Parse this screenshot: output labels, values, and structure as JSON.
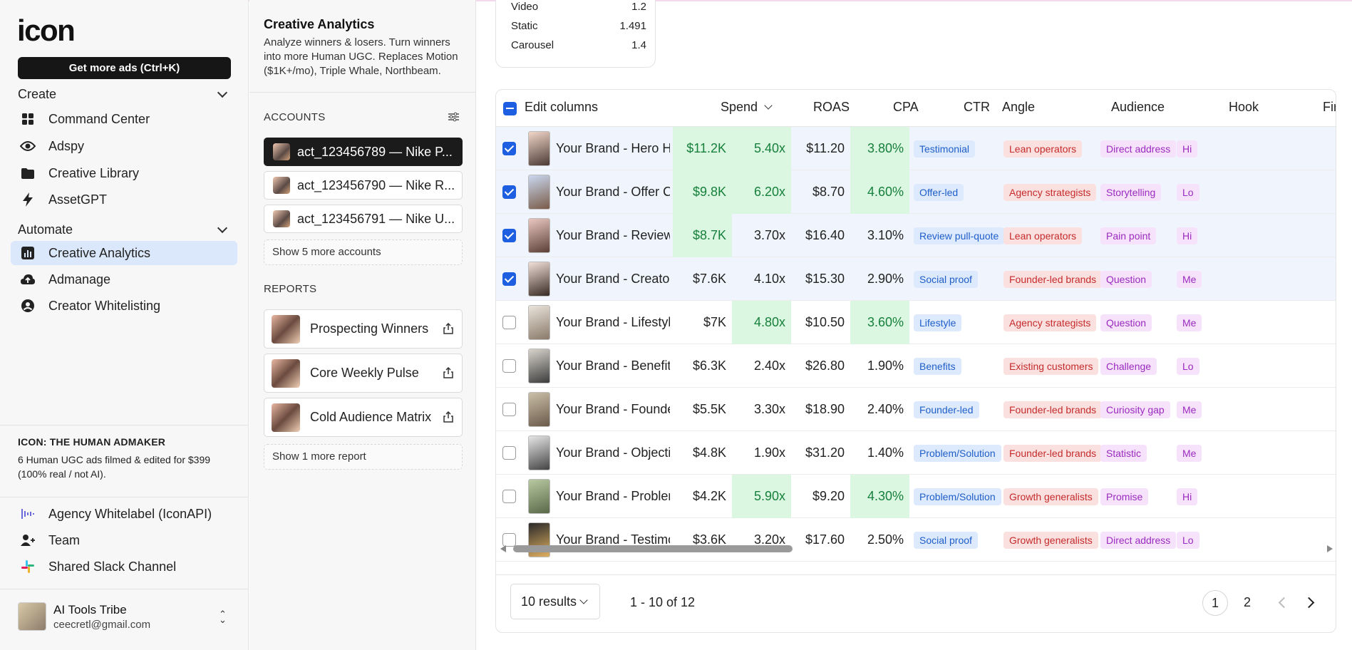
{
  "sidebar": {
    "logo": "icon",
    "cta": "Get more ads (Ctrl+K)",
    "create_label": "Create",
    "create_items": [
      {
        "label": "Command Center",
        "icon": "grid-icon"
      },
      {
        "label": "Adspy",
        "icon": "eye-icon"
      },
      {
        "label": "Creative Library",
        "icon": "folder-icon"
      },
      {
        "label": "AssetGPT",
        "icon": "lightning-icon"
      }
    ],
    "automate_label": "Automate",
    "automate_items": [
      {
        "label": "Creative Analytics",
        "icon": "bar-chart-icon",
        "active": true
      },
      {
        "label": "Admanage",
        "icon": "cloud-upload-icon"
      },
      {
        "label": "Creator Whitelisting",
        "icon": "user-circle-icon"
      }
    ],
    "promo_title": "ICON: THE HUMAN ADMAKER",
    "promo_text": "6 Human UGC ads filmed & edited for $399 (100% real / not AI).",
    "extra_items": [
      {
        "label": "Agency Whitelabel (IconAPI)",
        "icon": "audio-wave-icon"
      },
      {
        "label": "Team",
        "icon": "user-plus-icon"
      },
      {
        "label": "Shared Slack Channel",
        "icon": "slack-icon"
      }
    ],
    "user": {
      "name": "AI Tools Tribe",
      "email": "ceecretl@gmail.com"
    }
  },
  "panel": {
    "title": "Creative Analytics",
    "description": "Analyze winners & losers. Turn winners into more Human UGC. Replaces Motion ($1K+/mo), Triple Whale, Northbeam.",
    "accounts_label": "ACCOUNTS",
    "accounts": [
      {
        "label": "act_123456789 — Nike P...",
        "active": true
      },
      {
        "label": "act_123456790 — Nike R..."
      },
      {
        "label": "act_123456791 — Nike U..."
      }
    ],
    "show_more_accounts": "Show 5 more accounts",
    "reports_label": "REPORTS",
    "reports": [
      {
        "label": "Prospecting Winners"
      },
      {
        "label": "Core Weekly Pulse"
      },
      {
        "label": "Cold Audience Matrix"
      }
    ],
    "show_more_reports": "Show 1 more report"
  },
  "summary": {
    "rows": [
      {
        "label": "Video",
        "value": "1.2"
      },
      {
        "label": "Static",
        "value": "1.491"
      },
      {
        "label": "Carousel",
        "value": "1.4"
      }
    ]
  },
  "table": {
    "edit_columns": "Edit columns",
    "headers": {
      "spend": "Spend",
      "roas": "ROAS",
      "cpa": "CPA",
      "ctr": "CTR",
      "angle": "Angle",
      "audience": "Audience",
      "hook": "Hook",
      "format": "Fir"
    },
    "rows": [
      {
        "name": "Your Brand - Hero Hoo...",
        "spend": "$11.2K",
        "roas": "5.40x",
        "cpa": "$11.20",
        "ctr": "3.80%",
        "angle": "Testimonial",
        "audience": "Lean operators",
        "hook": "Direct address",
        "format": "Hi",
        "checked": true,
        "hl_spend": true,
        "hl_roas": true,
        "hl_ctr": true
      },
      {
        "name": "Your Brand - Offer Cou...",
        "spend": "$9.8K",
        "roas": "6.20x",
        "cpa": "$8.70",
        "ctr": "4.60%",
        "angle": "Offer-led",
        "audience": "Agency strategists",
        "hook": "Storytelling",
        "format": "Lo",
        "checked": true,
        "hl_spend": true,
        "hl_roas": true,
        "hl_ctr": true
      },
      {
        "name": "Your Brand - Review Pu...",
        "spend": "$8.7K",
        "roas": "3.70x",
        "cpa": "$16.40",
        "ctr": "3.10%",
        "angle": "Review pull-quote",
        "audience": "Lean operators",
        "hook": "Pain point",
        "format": "Hi",
        "checked": true,
        "hl_spend": true,
        "hl_roas": false,
        "hl_ctr": false
      },
      {
        "name": "Your Brand - Creator Pr...",
        "spend": "$7.6K",
        "roas": "4.10x",
        "cpa": "$15.30",
        "ctr": "2.90%",
        "angle": "Social proof",
        "audience": "Founder-led brands",
        "hook": "Question",
        "format": "Me",
        "checked": true,
        "hl_spend": false,
        "hl_roas": false,
        "hl_ctr": false
      },
      {
        "name": "Your Brand - Lifestyle ...",
        "spend": "$7K",
        "roas": "4.80x",
        "cpa": "$10.50",
        "ctr": "3.60%",
        "angle": "Lifestyle",
        "audience": "Agency strategists",
        "hook": "Question",
        "format": "Me",
        "checked": false,
        "hl_spend": false,
        "hl_roas": true,
        "hl_ctr": true
      },
      {
        "name": "Your Brand - Benefit St...",
        "spend": "$6.3K",
        "roas": "2.40x",
        "cpa": "$26.80",
        "ctr": "1.90%",
        "angle": "Benefits",
        "audience": "Existing customers",
        "hook": "Challenge",
        "format": "Lo",
        "checked": false,
        "hl_spend": false,
        "hl_roas": false,
        "hl_ctr": false
      },
      {
        "name": "Your Brand - Founder S...",
        "spend": "$5.5K",
        "roas": "3.30x",
        "cpa": "$18.90",
        "ctr": "2.40%",
        "angle": "Founder-led",
        "audience": "Founder-led brands",
        "hook": "Curiosity gap",
        "format": "Me",
        "checked": false,
        "hl_spend": false,
        "hl_roas": false,
        "hl_ctr": false
      },
      {
        "name": "Your Brand - Objection...",
        "spend": "$4.8K",
        "roas": "1.90x",
        "cpa": "$31.20",
        "ctr": "1.40%",
        "angle": "Problem/Solution",
        "audience": "Founder-led brands",
        "hook": "Statistic",
        "format": "Me",
        "checked": false,
        "hl_spend": false,
        "hl_roas": false,
        "hl_ctr": false
      },
      {
        "name": "Your Brand - Problem / ...",
        "spend": "$4.2K",
        "roas": "5.90x",
        "cpa": "$9.20",
        "ctr": "4.30%",
        "angle": "Problem/Solution",
        "audience": "Growth generalists",
        "hook": "Promise",
        "format": "Hi",
        "checked": false,
        "hl_spend": false,
        "hl_roas": true,
        "hl_ctr": true
      },
      {
        "name": "Your Brand - Testimoni...",
        "spend": "$3.6K",
        "roas": "3.20x",
        "cpa": "$17.60",
        "ctr": "2.50%",
        "angle": "Social proof",
        "audience": "Growth generalists",
        "hook": "Direct address",
        "format": "Lo",
        "checked": false,
        "hl_spend": false,
        "hl_roas": false,
        "hl_ctr": false
      }
    ],
    "results_select": "10 results",
    "range": "1 - 10 of 12",
    "pages": [
      "1",
      "2"
    ],
    "current_page": "1"
  },
  "colors": {
    "accent": "#1d5fe0",
    "positive_bg": "#dcf7e1",
    "positive_text": "#16803c",
    "active_nav": "#dbe8fb"
  }
}
